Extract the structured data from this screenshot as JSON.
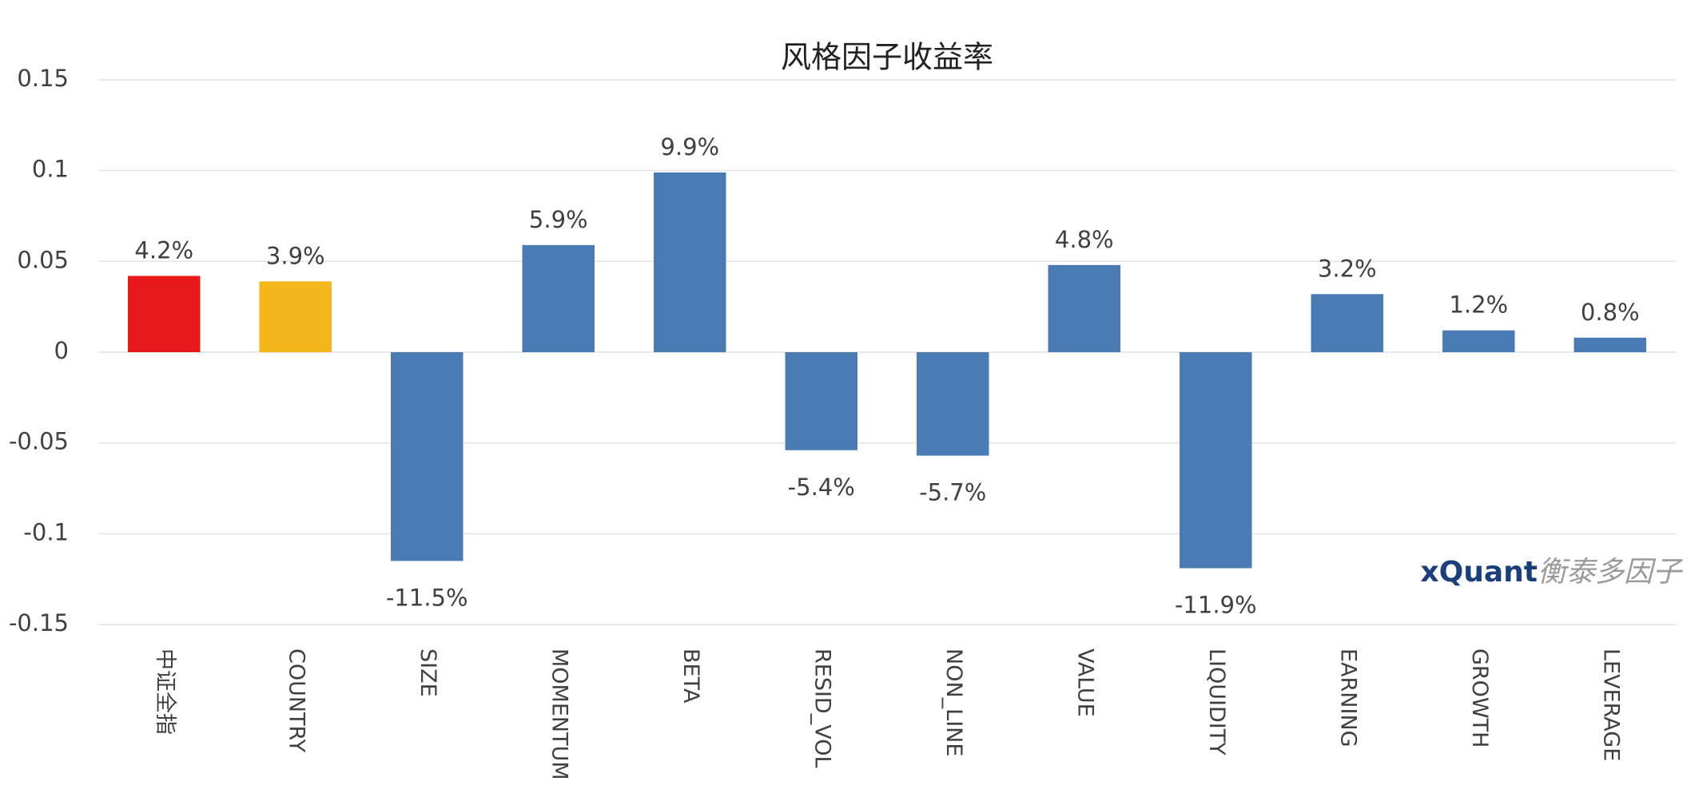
{
  "chart_data": {
    "type": "bar",
    "title": "风格因子收益率",
    "categories": [
      "中证全指",
      "COUNTRY",
      "SIZE",
      "MOMENTUM",
      "BETA",
      "RESID_VOL",
      "NON_LINE",
      "VALUE",
      "LIQUIDITY",
      "EARNING",
      "GROWTH",
      "LEVERAGE"
    ],
    "values": [
      0.042,
      0.039,
      -0.115,
      0.059,
      0.099,
      -0.054,
      -0.057,
      0.048,
      -0.119,
      0.032,
      0.012,
      0.008
    ],
    "value_labels": [
      "4.2%",
      "3.9%",
      "-11.5%",
      "5.9%",
      "9.9%",
      "-5.4%",
      "-5.7%",
      "4.8%",
      "-11.9%",
      "3.2%",
      "1.2%",
      "0.8%"
    ],
    "colors": [
      "#e8191a",
      "#f3b71b",
      "#4a7bb4",
      "#4a7bb4",
      "#4a7bb4",
      "#4a7bb4",
      "#4a7bb4",
      "#4a7bb4",
      "#4a7bb4",
      "#4a7bb4",
      "#4a7bb4",
      "#4a7bb4"
    ],
    "ylim": [
      -0.15,
      0.15
    ],
    "yticks": [
      0.15,
      0.1,
      0.05,
      0,
      -0.05,
      -0.1,
      -0.15
    ],
    "grid": true
  },
  "watermark": {
    "brand": "xQuant",
    "text": "衡泰多因子"
  }
}
